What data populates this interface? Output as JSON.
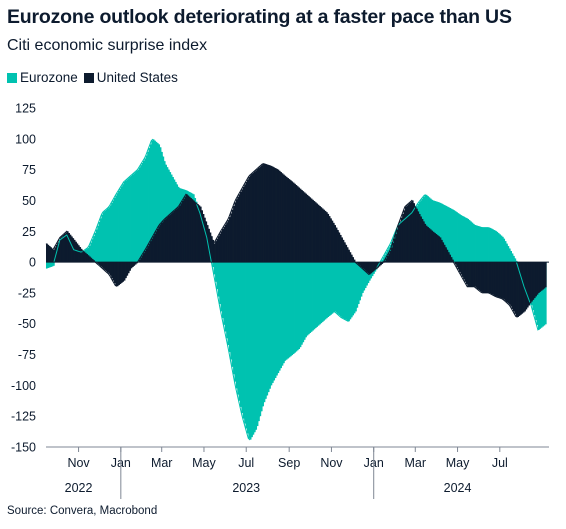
{
  "title": "Eurozone outlook deteriorating at a faster pace than US",
  "subtitle": "Citi economic surprise index",
  "source": "Source: Convera, Macrobond",
  "colors": {
    "eurozone": "#00c2b0",
    "united_states": "#0d1b2e"
  },
  "chart_data": {
    "type": "area",
    "legend": [
      "Eurozone",
      "United States"
    ],
    "legend_position": "top-left",
    "grid": false,
    "ylim": [
      -150,
      125
    ],
    "yticks": [
      "125",
      "100",
      "75",
      "50",
      "25",
      "0",
      "-25",
      "-50",
      "-75",
      "-100",
      "-125",
      "-150"
    ],
    "xlim": [
      "2022-09-15",
      "2024-09-10"
    ],
    "xticks": [
      {
        "label": "Nov",
        "date": "2022-11-01"
      },
      {
        "label": "Jan",
        "date": "2023-01-01"
      },
      {
        "label": "Mar",
        "date": "2023-03-01"
      },
      {
        "label": "May",
        "date": "2023-05-01"
      },
      {
        "label": "Jul",
        "date": "2023-07-01"
      },
      {
        "label": "Sep",
        "date": "2023-09-01"
      },
      {
        "label": "Nov",
        "date": "2023-11-01"
      },
      {
        "label": "Jan",
        "date": "2024-01-01"
      },
      {
        "label": "Mar",
        "date": "2024-03-01"
      },
      {
        "label": "May",
        "date": "2024-05-01"
      },
      {
        "label": "Jul",
        "date": "2024-07-01"
      }
    ],
    "year_labels": [
      {
        "label": "2022",
        "date": "2022-11-01"
      },
      {
        "label": "2023",
        "date": "2023-07-01"
      },
      {
        "label": "2024",
        "date": "2024-05-01"
      }
    ],
    "series": [
      {
        "name": "Eurozone",
        "x": [
          "2022-09-15",
          "2022-09-25",
          "2022-10-05",
          "2022-10-15",
          "2022-10-25",
          "2022-11-05",
          "2022-11-15",
          "2022-11-25",
          "2022-12-05",
          "2022-12-15",
          "2022-12-25",
          "2023-01-05",
          "2023-01-15",
          "2023-01-25",
          "2023-02-05",
          "2023-02-15",
          "2023-02-25",
          "2023-03-05",
          "2023-03-15",
          "2023-03-25",
          "2023-04-05",
          "2023-04-15",
          "2023-04-25",
          "2023-05-05",
          "2023-05-15",
          "2023-05-25",
          "2023-06-05",
          "2023-06-15",
          "2023-06-25",
          "2023-07-05",
          "2023-07-15",
          "2023-07-25",
          "2023-08-05",
          "2023-08-15",
          "2023-08-25",
          "2023-09-05",
          "2023-09-15",
          "2023-09-25",
          "2023-10-05",
          "2023-10-15",
          "2023-10-25",
          "2023-11-05",
          "2023-11-15",
          "2023-11-25",
          "2023-12-05",
          "2023-12-15",
          "2023-12-25",
          "2024-01-05",
          "2024-01-15",
          "2024-01-25",
          "2024-02-05",
          "2024-02-15",
          "2024-02-25",
          "2024-03-05",
          "2024-03-15",
          "2024-03-25",
          "2024-04-05",
          "2024-04-15",
          "2024-04-25",
          "2024-05-05",
          "2024-05-15",
          "2024-05-25",
          "2024-06-05",
          "2024-06-15",
          "2024-06-25",
          "2024-07-05",
          "2024-07-15",
          "2024-07-25",
          "2024-08-05",
          "2024-08-15",
          "2024-08-25",
          "2024-09-05"
        ],
        "values": [
          -5,
          -3,
          18,
          22,
          10,
          8,
          12,
          25,
          40,
          45,
          55,
          65,
          70,
          75,
          85,
          100,
          95,
          80,
          70,
          60,
          58,
          55,
          40,
          20,
          -10,
          -40,
          -70,
          -100,
          -125,
          -145,
          -135,
          -115,
          -100,
          -90,
          -80,
          -75,
          -70,
          -60,
          -55,
          -50,
          -45,
          -40,
          -45,
          -48,
          -40,
          -25,
          -15,
          -5,
          5,
          15,
          30,
          35,
          40,
          48,
          55,
          50,
          48,
          45,
          42,
          38,
          35,
          30,
          28,
          28,
          25,
          20,
          10,
          0,
          -20,
          -35,
          -55,
          -50
        ]
      },
      {
        "name": "United States",
        "x": [
          "2022-09-15",
          "2022-09-25",
          "2022-10-05",
          "2022-10-15",
          "2022-10-25",
          "2022-11-05",
          "2022-11-15",
          "2022-11-25",
          "2022-12-05",
          "2022-12-15",
          "2022-12-25",
          "2023-01-05",
          "2023-01-15",
          "2023-01-25",
          "2023-02-05",
          "2023-02-15",
          "2023-02-25",
          "2023-03-05",
          "2023-03-15",
          "2023-03-25",
          "2023-04-05",
          "2023-04-15",
          "2023-04-25",
          "2023-05-05",
          "2023-05-15",
          "2023-05-25",
          "2023-06-05",
          "2023-06-15",
          "2023-06-25",
          "2023-07-05",
          "2023-07-15",
          "2023-07-25",
          "2023-08-05",
          "2023-08-15",
          "2023-08-25",
          "2023-09-05",
          "2023-09-15",
          "2023-09-25",
          "2023-10-05",
          "2023-10-15",
          "2023-10-25",
          "2023-11-05",
          "2023-11-15",
          "2023-11-25",
          "2023-12-05",
          "2023-12-15",
          "2023-12-25",
          "2024-01-05",
          "2024-01-15",
          "2024-01-25",
          "2024-02-05",
          "2024-02-15",
          "2024-02-25",
          "2024-03-05",
          "2024-03-15",
          "2024-03-25",
          "2024-04-05",
          "2024-04-15",
          "2024-04-25",
          "2024-05-05",
          "2024-05-15",
          "2024-05-25",
          "2024-06-05",
          "2024-06-15",
          "2024-06-25",
          "2024-07-05",
          "2024-07-15",
          "2024-07-25",
          "2024-08-05",
          "2024-08-15",
          "2024-08-25",
          "2024-09-05"
        ],
        "values": [
          15,
          10,
          20,
          25,
          18,
          10,
          5,
          0,
          -5,
          -10,
          -20,
          -15,
          -5,
          0,
          10,
          20,
          30,
          35,
          40,
          45,
          55,
          50,
          45,
          30,
          15,
          25,
          35,
          50,
          60,
          70,
          75,
          80,
          78,
          75,
          70,
          65,
          60,
          55,
          50,
          45,
          40,
          30,
          20,
          10,
          0,
          -5,
          -10,
          -5,
          0,
          10,
          30,
          45,
          50,
          40,
          30,
          25,
          20,
          10,
          0,
          -10,
          -20,
          -20,
          -25,
          -25,
          -28,
          -30,
          -35,
          -45,
          -40,
          -32,
          -25,
          -20
        ]
      }
    ]
  }
}
